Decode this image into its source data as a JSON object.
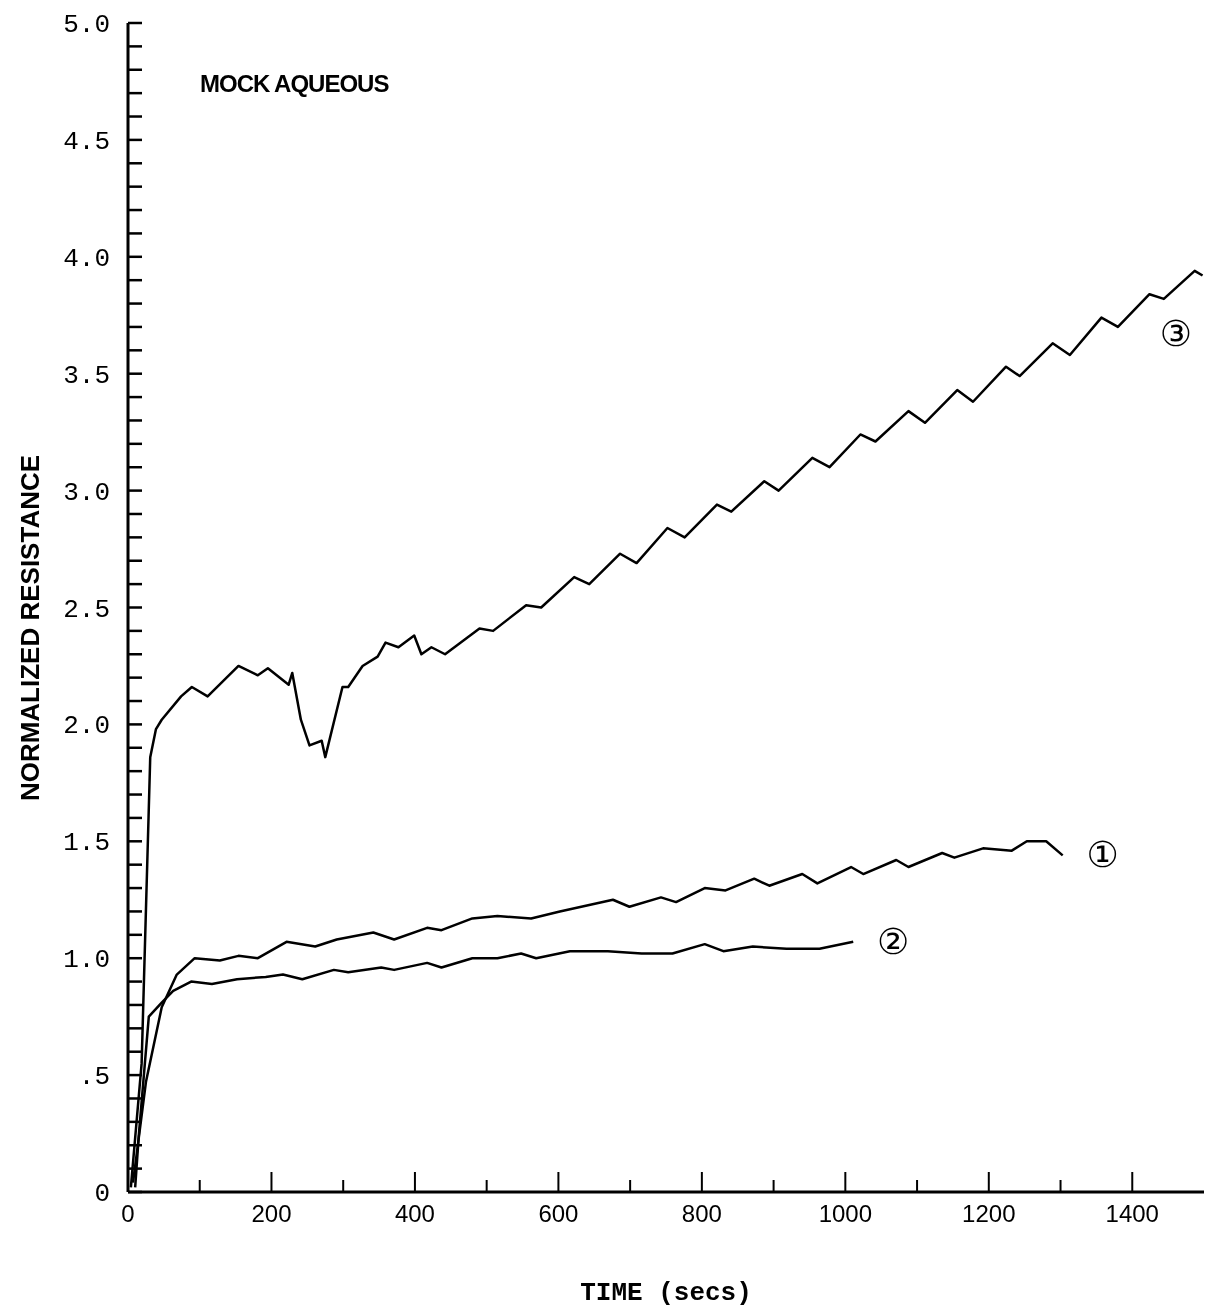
{
  "chart_data": {
    "type": "line",
    "title": "MOCK AQUEOUS",
    "xlabel": "TIME (secs)",
    "ylabel": "NORMALIZED RESISTANCE",
    "xlim": [
      0,
      1500
    ],
    "xticks": [
      0,
      {
        "value": 100,
        "label": null
      },
      200,
      {
        "value": 300,
        "label": null
      },
      400,
      {
        "value": 500,
        "label": null
      },
      600,
      {
        "value": 700,
        "label": null
      },
      800,
      {
        "value": 900,
        "label": null
      },
      1000,
      {
        "value": 1100,
        "label": null
      },
      1200,
      {
        "value": 1300,
        "label": null
      },
      1400
    ],
    "ylim": [
      0,
      5
    ],
    "yticks": [
      0,
      {
        "value": 0.1,
        "label": null
      },
      {
        "value": 0.2,
        "label": null
      },
      {
        "value": 0.3,
        "label": null
      },
      {
        "value": 0.4,
        "label": null
      },
      {
        "value": 0.5,
        "label": ".5"
      },
      {
        "value": 0.6,
        "label": null
      },
      {
        "value": 0.7,
        "label": null
      },
      {
        "value": 0.8,
        "label": null
      },
      {
        "value": 0.9,
        "label": null
      },
      {
        "value": 1,
        "label": "1.0"
      },
      {
        "value": 1.1,
        "label": null
      },
      {
        "value": 1.2,
        "label": null
      },
      {
        "value": 1.3,
        "label": null
      },
      {
        "value": 1.4,
        "label": null
      },
      1.5,
      {
        "value": 1.6,
        "label": null
      },
      {
        "value": 1.7,
        "label": null
      },
      {
        "value": 1.8,
        "label": null
      },
      {
        "value": 1.9,
        "label": null
      },
      {
        "value": 2,
        "label": "2.0"
      },
      {
        "value": 2.1,
        "label": null
      },
      {
        "value": 2.2,
        "label": null
      },
      {
        "value": 2.3,
        "label": null
      },
      {
        "value": 2.4,
        "label": null
      },
      2.5,
      {
        "value": 2.6,
        "label": null
      },
      {
        "value": 2.7,
        "label": null
      },
      {
        "value": 2.8,
        "label": null
      },
      {
        "value": 2.9,
        "label": null
      },
      {
        "value": 3,
        "label": "3.0"
      },
      {
        "value": 3.1,
        "label": null
      },
      {
        "value": 3.2,
        "label": null
      },
      {
        "value": 3.3,
        "label": null
      },
      {
        "value": 3.4,
        "label": null
      },
      3.5,
      {
        "value": 3.6,
        "label": null
      },
      {
        "value": 3.7,
        "label": null
      },
      {
        "value": 3.8,
        "label": null
      },
      {
        "value": 3.9,
        "label": null
      },
      {
        "value": 4,
        "label": "4.0"
      },
      {
        "value": 4.1,
        "label": null
      },
      {
        "value": 4.2,
        "label": null
      },
      {
        "value": 4.3,
        "label": null
      },
      {
        "value": 4.4,
        "label": null
      },
      4.5,
      {
        "value": 4.6,
        "label": null
      },
      {
        "value": 4.7,
        "label": null
      },
      {
        "value": 4.8,
        "label": null
      },
      {
        "value": 4.9,
        "label": null
      },
      {
        "value": 5,
        "label": "5.0"
      }
    ],
    "series": [
      {
        "name": "①",
        "color": "#000000",
        "x": [
          7,
          25,
          47,
          68,
          93,
          128,
          154,
          181,
          221,
          261,
          291,
          342,
          371,
          417,
          437,
          480,
          515,
          562,
          602,
          676,
          699,
          743,
          764,
          804,
          833,
          873,
          894,
          940,
          961,
          1008,
          1025,
          1071,
          1088,
          1135,
          1152,
          1192,
          1232,
          1253,
          1280,
          1303
        ],
        "values": [
          0.04,
          0.47,
          0.79,
          0.93,
          1.0,
          0.99,
          1.01,
          1.0,
          1.07,
          1.05,
          1.08,
          1.11,
          1.08,
          1.13,
          1.12,
          1.17,
          1.18,
          1.17,
          1.2,
          1.25,
          1.22,
          1.26,
          1.24,
          1.3,
          1.29,
          1.34,
          1.31,
          1.36,
          1.32,
          1.39,
          1.36,
          1.42,
          1.39,
          1.45,
          1.43,
          1.47,
          1.46,
          1.5,
          1.5,
          1.44
        ]
      },
      {
        "name": "②",
        "color": "#000000",
        "x": [
          10,
          15,
          29,
          47,
          63,
          88,
          117,
          152,
          192,
          216,
          243,
          287,
          307,
          353,
          371,
          417,
          437,
          480,
          515,
          548,
          569,
          616,
          669,
          716,
          759,
          804,
          830,
          871,
          918,
          964,
          1011
        ],
        "values": [
          0.02,
          0.24,
          0.75,
          0.81,
          0.86,
          0.9,
          0.89,
          0.91,
          0.92,
          0.93,
          0.91,
          0.95,
          0.94,
          0.96,
          0.95,
          0.98,
          0.96,
          1.0,
          1.0,
          1.02,
          1.0,
          1.03,
          1.03,
          1.02,
          1.02,
          1.06,
          1.03,
          1.05,
          1.04,
          1.04,
          1.07
        ]
      },
      {
        "name": "③",
        "color": "#000000",
        "x": [
          4,
          19,
          31,
          39,
          47,
          74,
          89,
          111,
          154,
          181,
          195,
          224,
          229,
          241,
          253,
          270,
          275,
          299,
          307,
          327,
          348,
          359,
          377,
          399,
          409,
          423,
          442,
          490,
          509,
          555,
          576,
          622,
          643,
          686,
          709,
          752,
          776,
          821,
          841,
          887,
          907,
          954,
          978,
          1021,
          1042,
          1088,
          1111,
          1156,
          1178,
          1224,
          1243,
          1289,
          1313,
          1357,
          1380,
          1424,
          1444,
          1487,
          1498
        ],
        "values": [
          0.02,
          0.55,
          1.86,
          1.98,
          2.02,
          2.12,
          2.16,
          2.12,
          2.25,
          2.21,
          2.24,
          2.17,
          2.22,
          2.02,
          1.91,
          1.93,
          1.86,
          2.16,
          2.16,
          2.25,
          2.29,
          2.35,
          2.33,
          2.38,
          2.3,
          2.33,
          2.3,
          2.41,
          2.4,
          2.51,
          2.5,
          2.63,
          2.6,
          2.73,
          2.69,
          2.84,
          2.8,
          2.94,
          2.91,
          3.04,
          3.0,
          3.14,
          3.1,
          3.24,
          3.21,
          3.34,
          3.29,
          3.43,
          3.38,
          3.53,
          3.49,
          3.63,
          3.58,
          3.74,
          3.7,
          3.84,
          3.82,
          3.94,
          3.92
        ]
      }
    ]
  }
}
